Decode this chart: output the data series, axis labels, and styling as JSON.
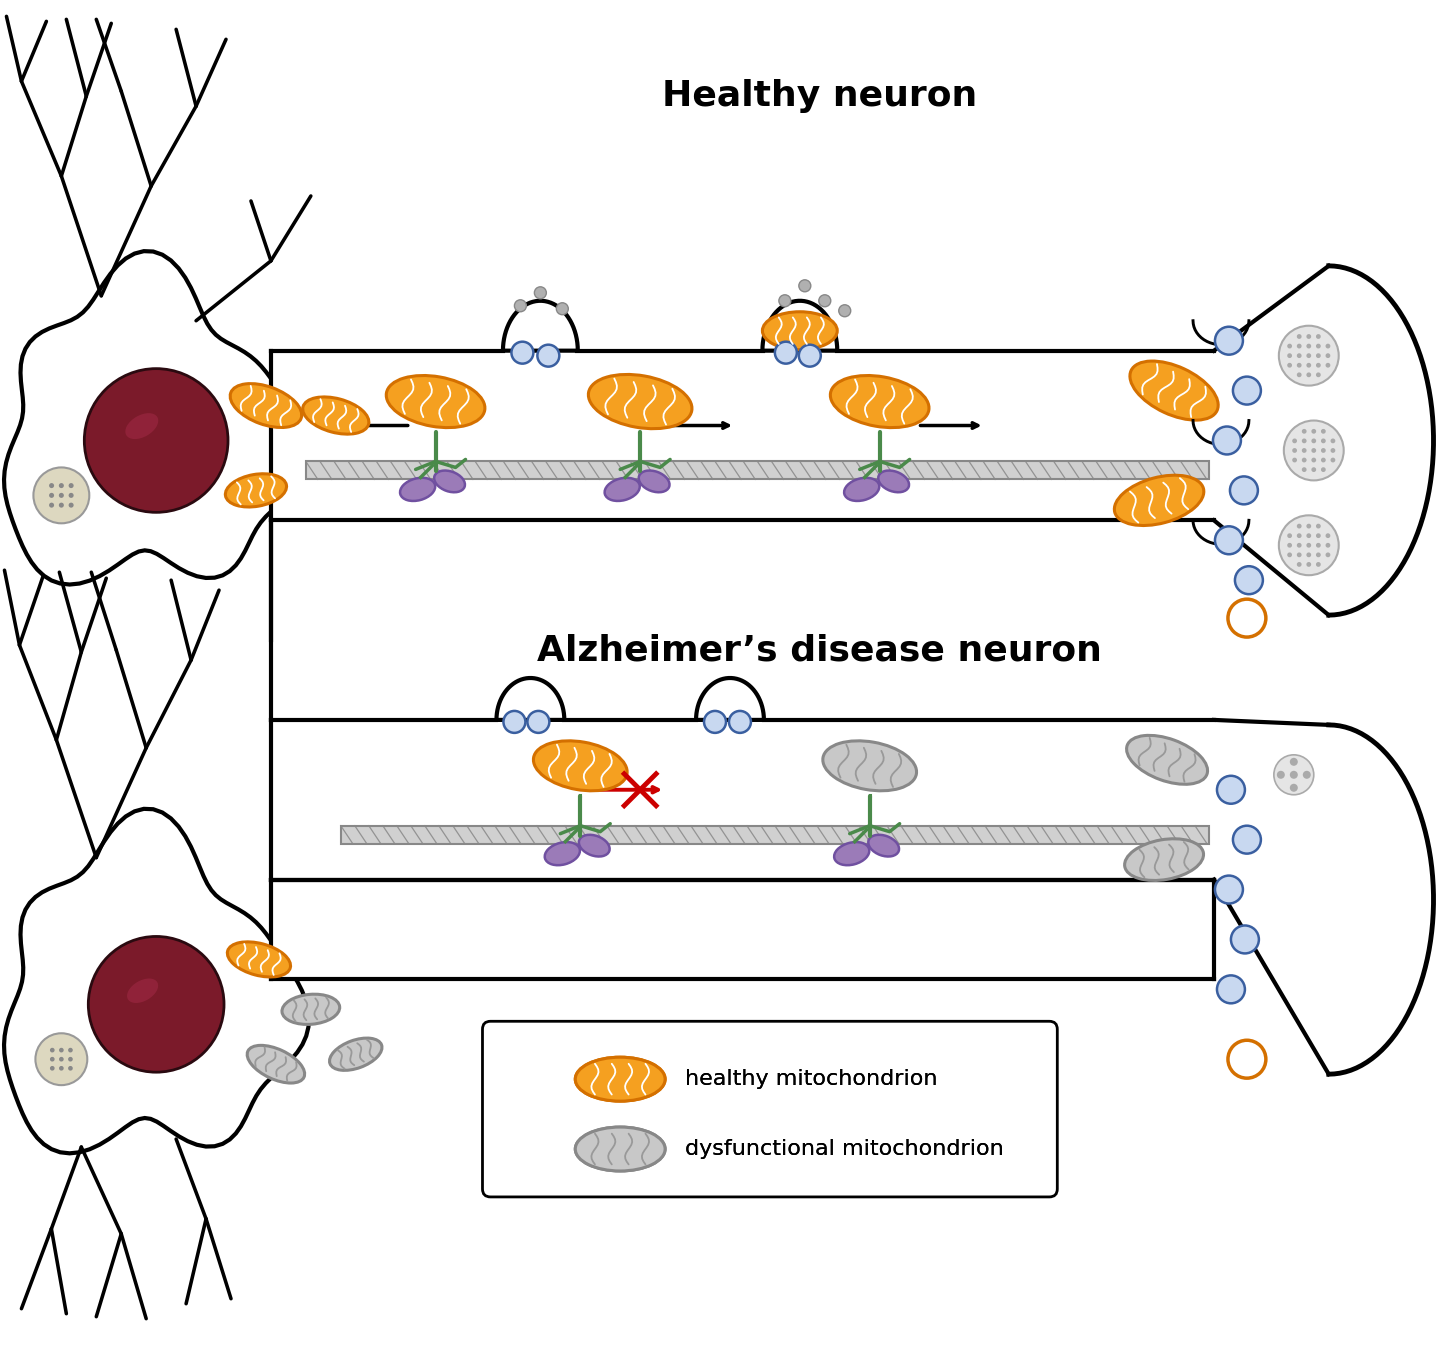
{
  "title_healthy": "Healthy neuron",
  "title_ad": "Alzheimer’s disease neuron",
  "legend_healthy_mito": "healthy mitochondrion",
  "legend_dysfunc_mito": "dysfunctional mitochondrion",
  "bg_color": "#ffffff",
  "mito_healthy_fill": "#f5a020",
  "mito_healthy_edge": "#d47000",
  "mito_dysfunc_fill": "#c8c8c8",
  "mito_dysfunc_edge": "#888888",
  "nucleus_color": "#7b1a2a",
  "vesicle_blue_fill": "#c8d8f0",
  "vesicle_blue_edge": "#3a5fa0",
  "vesicle_orange_edge": "#d47000",
  "motor_body_color": "#9b7bb8",
  "motor_leg_color": "#4a8a4a"
}
